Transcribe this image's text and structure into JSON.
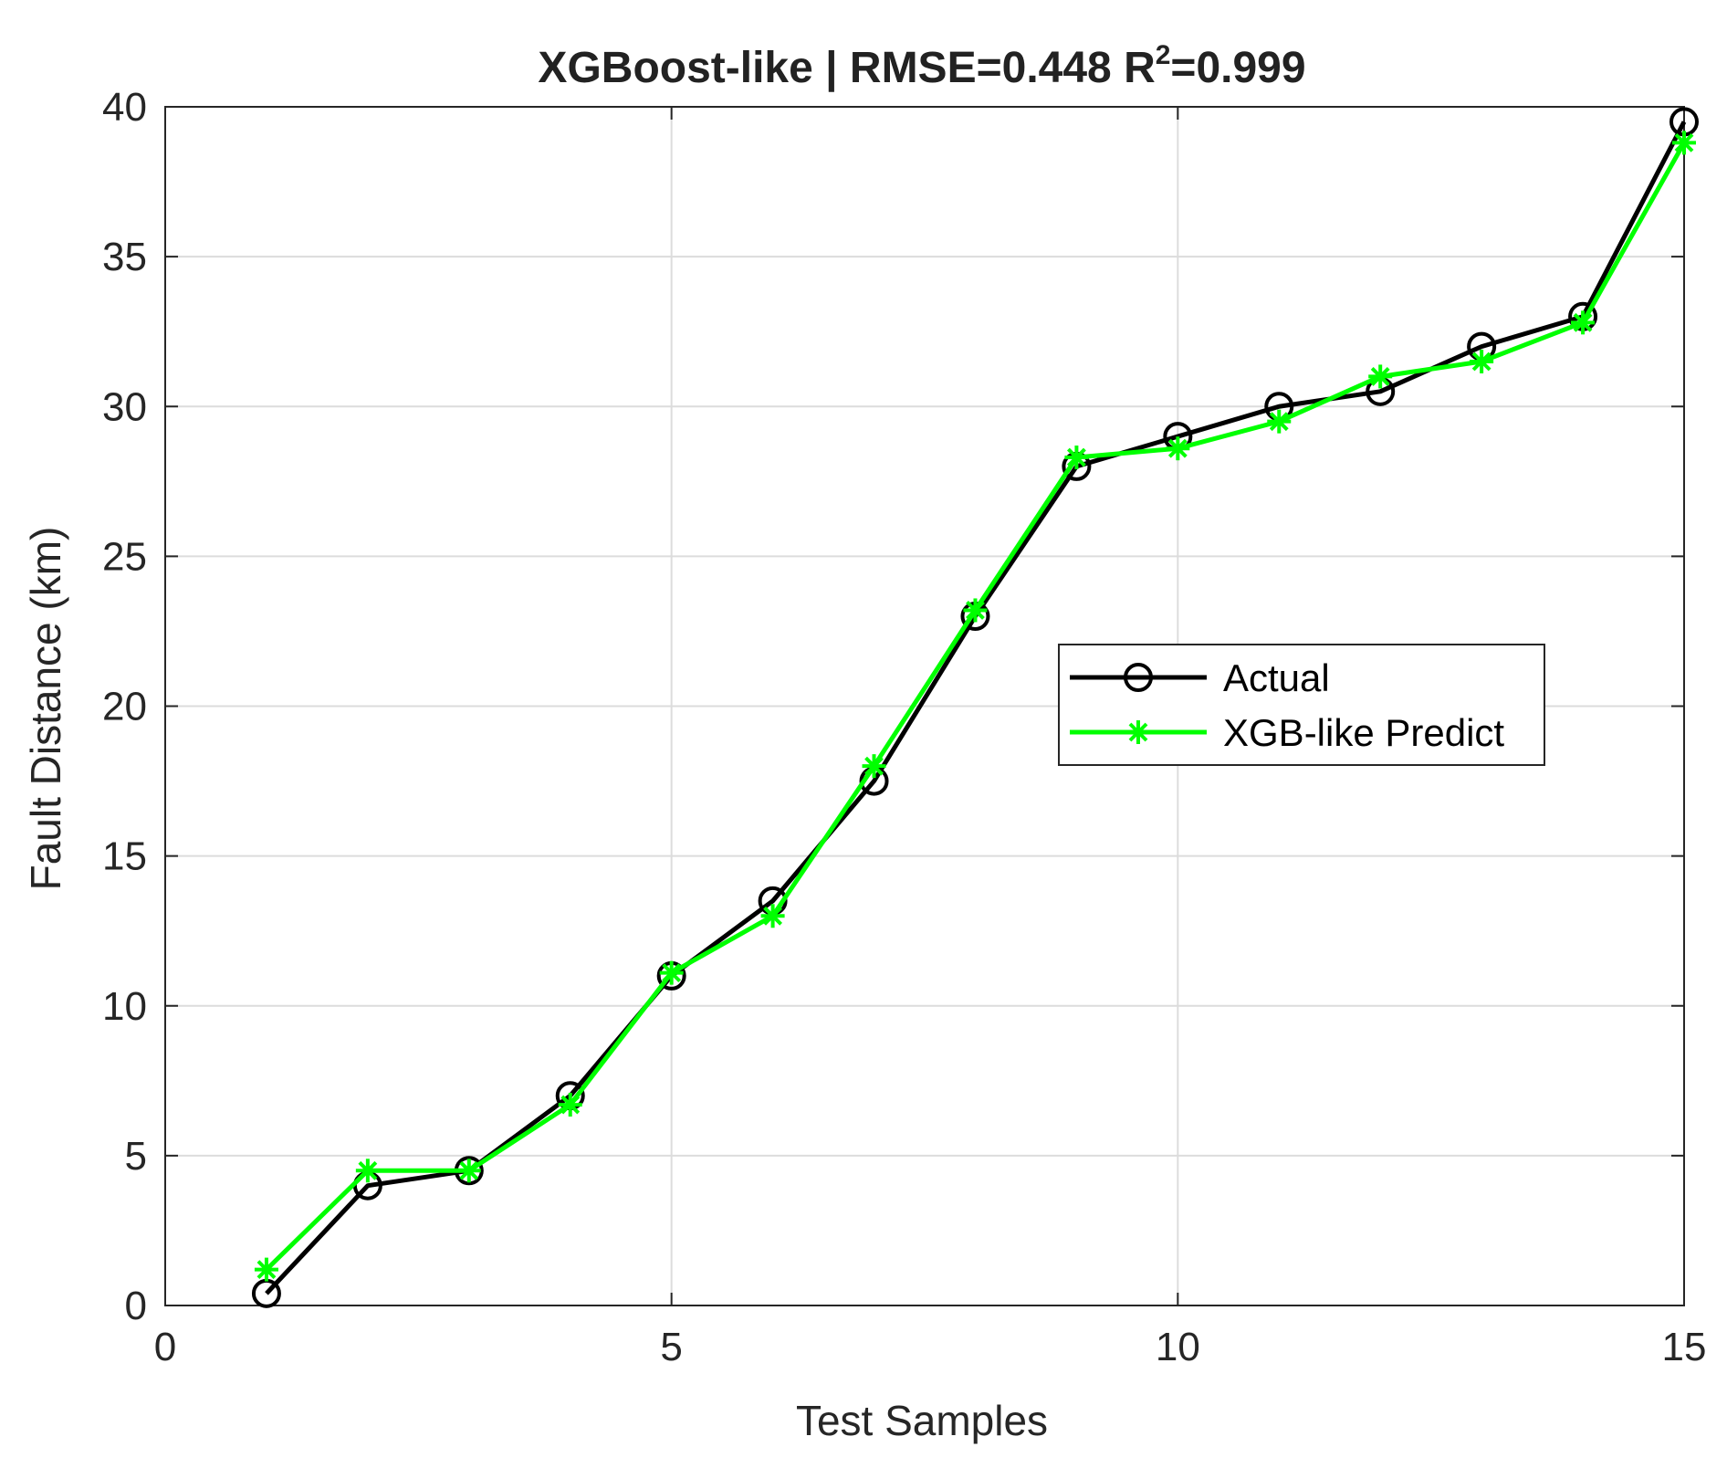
{
  "chart_data": {
    "type": "line",
    "title": {
      "main": "XGBoost-like | RMSE=0.448  R",
      "sup": "2",
      "tail": "=0.999"
    },
    "xlabel": "Test Samples",
    "ylabel": "Fault Distance (km)",
    "xlim": [
      0,
      15
    ],
    "ylim": [
      0,
      40
    ],
    "xticks": [
      0,
      5,
      10,
      15
    ],
    "yticks": [
      0,
      5,
      10,
      15,
      20,
      25,
      30,
      35,
      40
    ],
    "xtick_labels": [
      "0",
      "5",
      "10",
      "15"
    ],
    "ytick_labels": [
      "0",
      "5",
      "10",
      "15",
      "20",
      "25",
      "30",
      "35",
      "40"
    ],
    "grid": true,
    "legend_position": "center-right",
    "x": [
      1,
      2,
      3,
      4,
      5,
      6,
      7,
      8,
      9,
      10,
      11,
      12,
      13,
      14,
      15
    ],
    "series": [
      {
        "name": "Actual",
        "marker": "circle",
        "color": "#000000",
        "values": [
          0.4,
          4.0,
          4.5,
          7.0,
          11.0,
          13.5,
          17.5,
          23.0,
          28.0,
          29.0,
          30.0,
          30.5,
          32.0,
          33.0,
          39.5
        ]
      },
      {
        "name": "XGB-like Predict",
        "marker": "asterisk",
        "color": "#00FF00",
        "values": [
          1.2,
          4.5,
          4.5,
          6.7,
          11.1,
          13.0,
          18.0,
          23.2,
          28.3,
          28.6,
          29.5,
          31.0,
          31.5,
          32.8,
          38.8
        ]
      }
    ]
  }
}
